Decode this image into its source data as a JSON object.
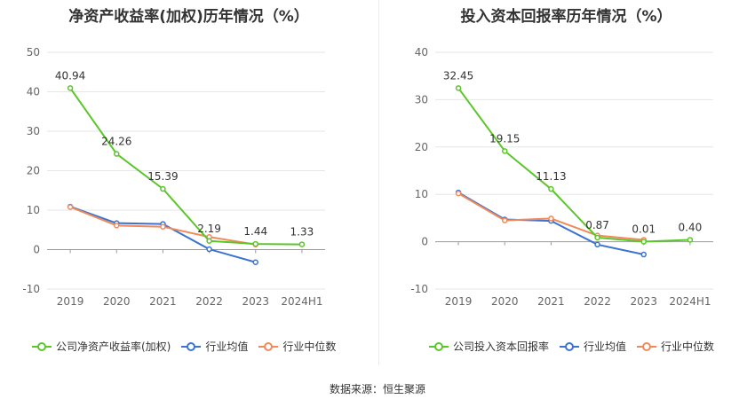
{
  "chart_data": [
    {
      "type": "line",
      "title": "净资产收益率(加权)历年情况（%）",
      "categories": [
        "2019",
        "2020",
        "2021",
        "2022",
        "2023",
        "2024H1"
      ],
      "ylim": [
        -10,
        50
      ],
      "yticks": [
        -10,
        0,
        10,
        20,
        30,
        40,
        50
      ],
      "grid": true,
      "legend_position": "bottom",
      "series": [
        {
          "name": "公司净资产收益率(加权)",
          "color": "#5bc62a",
          "values": [
            40.94,
            24.26,
            15.39,
            2.19,
            1.44,
            1.33
          ],
          "labels": [
            "40.94",
            "24.26",
            "15.39",
            "2.19",
            "1.44",
            "1.33"
          ]
        },
        {
          "name": "行业均值",
          "color": "#3b73d1",
          "values": [
            10.9,
            6.7,
            6.5,
            0.1,
            -3.2,
            null
          ]
        },
        {
          "name": "行业中位数",
          "color": "#f08a5a",
          "values": [
            10.8,
            6.1,
            5.8,
            3.2,
            1.3,
            null
          ]
        }
      ]
    },
    {
      "type": "line",
      "title": "投入资本回报率历年情况（%）",
      "categories": [
        "2019",
        "2020",
        "2021",
        "2022",
        "2023",
        "2024H1"
      ],
      "ylim": [
        -10,
        40
      ],
      "yticks": [
        -10,
        0,
        10,
        20,
        30,
        40
      ],
      "grid": true,
      "legend_position": "bottom",
      "series": [
        {
          "name": "公司投入资本回报率",
          "color": "#5bc62a",
          "values": [
            32.45,
            19.15,
            11.13,
            0.87,
            0.01,
            0.4
          ],
          "labels": [
            "32.45",
            "19.15",
            "11.13",
            "0.87",
            "0.01",
            "0.40"
          ]
        },
        {
          "name": "行业均值",
          "color": "#3b73d1",
          "values": [
            10.4,
            4.7,
            4.4,
            -0.6,
            -2.7,
            null
          ]
        },
        {
          "name": "行业中位数",
          "color": "#f08a5a",
          "values": [
            10.2,
            4.5,
            4.9,
            1.3,
            0.4,
            null
          ]
        }
      ]
    }
  ],
  "footer": "数据来源：恒生聚源"
}
